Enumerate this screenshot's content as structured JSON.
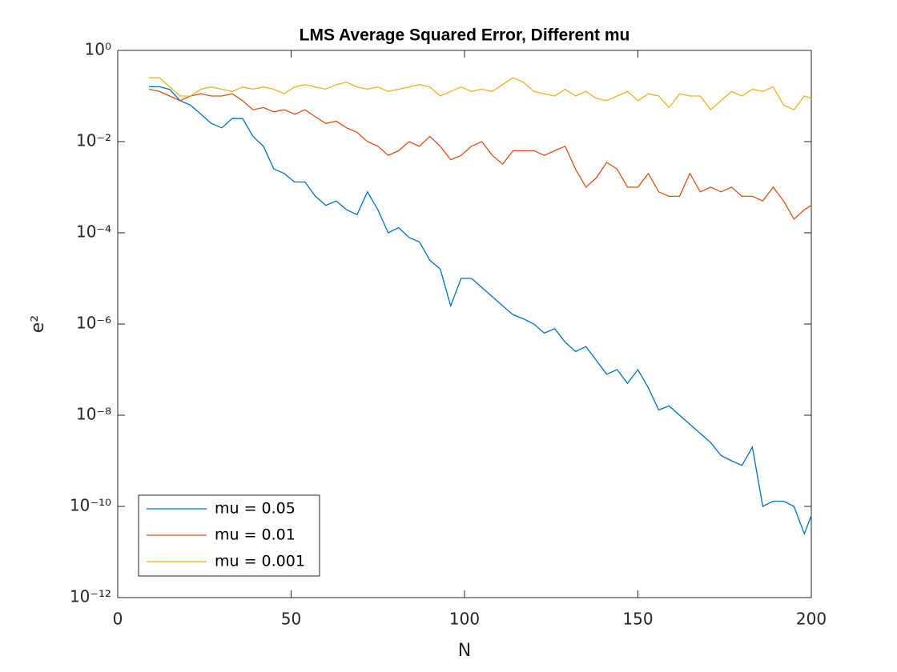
{
  "chart_data": {
    "type": "line",
    "title": "LMS Average Squared Error, Different mu",
    "xlabel": "N",
    "ylabel": "e²",
    "x": [
      9,
      12,
      15,
      18,
      21,
      24,
      27,
      30,
      33,
      36,
      39,
      42,
      45,
      48,
      51,
      54,
      57,
      60,
      63,
      66,
      69,
      72,
      75,
      78,
      81,
      84,
      87,
      90,
      93,
      96,
      99,
      102,
      105,
      108,
      111,
      114,
      117,
      120,
      123,
      126,
      129,
      132,
      135,
      138,
      141,
      144,
      147,
      150,
      153,
      156,
      159,
      162,
      165,
      168,
      171,
      174,
      177,
      180,
      183,
      186,
      189,
      192,
      195,
      198,
      200
    ],
    "series": [
      {
        "name": "mu = 0.05",
        "color": "#0072BD",
        "values": [
          0.16,
          0.16,
          0.14,
          0.079,
          0.063,
          0.04,
          0.025,
          0.02,
          0.032,
          0.032,
          0.013,
          0.0079,
          0.0025,
          0.002,
          0.0013,
          0.0013,
          0.00063,
          0.0004,
          0.0005,
          0.00032,
          0.00025,
          0.00079,
          0.00032,
          0.0001,
          0.00013,
          7.9e-05,
          6.3e-05,
          2.5e-05,
          1.6e-05,
          2.5e-06,
          1e-05,
          1e-05,
          6.3e-06,
          4e-06,
          2.5e-06,
          1.6e-06,
          1.3e-06,
          1e-06,
          6.3e-07,
          7.9e-07,
          4e-07,
          2.5e-07,
          3.2e-07,
          1.6e-07,
          7.9e-08,
          1e-07,
          5e-08,
          1e-07,
          4e-08,
          1.3e-08,
          1.6e-08,
          1e-08,
          6.3e-09,
          4e-09,
          2.5e-09,
          1.3e-09,
          1e-09,
          7.9e-10,
          2e-09,
          1e-10,
          1.3e-10,
          1.3e-10,
          1e-10,
          2.5e-11,
          6.3e-11
        ]
      },
      {
        "name": "mu = 0.01",
        "color": "#D95319",
        "values": [
          0.141,
          0.126,
          0.1,
          0.079,
          0.1,
          0.112,
          0.1,
          0.1,
          0.112,
          0.079,
          0.05,
          0.056,
          0.045,
          0.05,
          0.04,
          0.05,
          0.035,
          0.025,
          0.028,
          0.02,
          0.016,
          0.01,
          0.0079,
          0.005,
          0.0063,
          0.01,
          0.0079,
          0.013,
          0.0079,
          0.004,
          0.005,
          0.0079,
          0.01,
          0.005,
          0.0032,
          0.0063,
          0.0063,
          0.0063,
          0.005,
          0.0063,
          0.0079,
          0.0025,
          0.001,
          0.0016,
          0.0035,
          0.0025,
          0.001,
          0.001,
          0.002,
          0.00079,
          0.00063,
          0.00063,
          0.002,
          0.00079,
          0.001,
          0.00079,
          0.001,
          0.00063,
          0.00063,
          0.0005,
          0.001,
          0.0005,
          0.0002,
          0.00032,
          0.0004
        ]
      },
      {
        "name": "mu = 0.001",
        "color": "#EDB120",
        "values": [
          0.251,
          0.251,
          0.158,
          0.1,
          0.1,
          0.141,
          0.158,
          0.141,
          0.126,
          0.158,
          0.141,
          0.158,
          0.141,
          0.112,
          0.158,
          0.178,
          0.158,
          0.141,
          0.178,
          0.2,
          0.158,
          0.141,
          0.158,
          0.126,
          0.141,
          0.158,
          0.178,
          0.158,
          0.1,
          0.126,
          0.158,
          0.126,
          0.141,
          0.126,
          0.178,
          0.251,
          0.2,
          0.126,
          0.112,
          0.1,
          0.141,
          0.1,
          0.126,
          0.089,
          0.079,
          0.1,
          0.126,
          0.079,
          0.112,
          0.1,
          0.056,
          0.112,
          0.1,
          0.1,
          0.05,
          0.079,
          0.126,
          0.1,
          0.141,
          0.126,
          0.158,
          0.063,
          0.05,
          0.1,
          0.089
        ]
      }
    ],
    "xlim": [
      0,
      200
    ],
    "xticks": [
      0,
      50,
      100,
      150,
      200
    ],
    "ylim": [
      1e-12,
      1
    ],
    "log_y": true,
    "yticks": [
      {
        "value": 1e-12,
        "label": "10⁻¹²"
      },
      {
        "value": 1e-10,
        "label": "10⁻¹⁰"
      },
      {
        "value": 1e-08,
        "label": "10⁻⁸"
      },
      {
        "value": 1e-06,
        "label": "10⁻⁶"
      },
      {
        "value": 0.0001,
        "label": "10⁻⁴"
      },
      {
        "value": 0.01,
        "label": "10⁻²"
      },
      {
        "value": 1,
        "label": "10⁰"
      }
    ],
    "grid": false,
    "legend": "southwest"
  }
}
